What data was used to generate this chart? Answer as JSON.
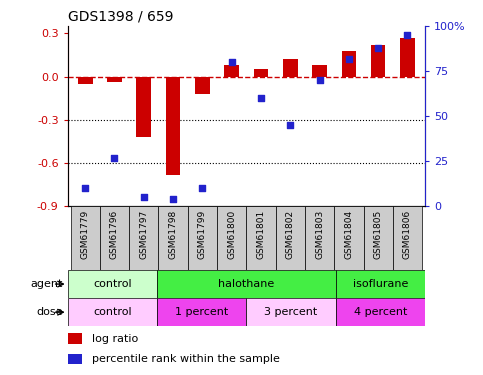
{
  "title": "GDS1398 / 659",
  "samples": [
    "GSM61779",
    "GSM61796",
    "GSM61797",
    "GSM61798",
    "GSM61799",
    "GSM61800",
    "GSM61801",
    "GSM61802",
    "GSM61803",
    "GSM61804",
    "GSM61805",
    "GSM61806"
  ],
  "log_ratio": [
    -0.05,
    -0.04,
    -0.42,
    -0.68,
    -0.12,
    0.08,
    0.05,
    0.12,
    0.08,
    0.18,
    0.22,
    0.27
  ],
  "percentile_rank": [
    10,
    27,
    5,
    4,
    10,
    80,
    60,
    45,
    70,
    82,
    88,
    95
  ],
  "bar_color": "#cc0000",
  "dot_color": "#2222cc",
  "dashed_line_color": "#cc0000",
  "ylim_left": [
    -0.9,
    0.35
  ],
  "ylim_right": [
    0,
    100
  ],
  "yticks_left": [
    0.3,
    0.0,
    -0.3,
    -0.6,
    -0.9
  ],
  "yticks_right": [
    100,
    75,
    50,
    25,
    0
  ],
  "agent_groups": [
    {
      "label": "control",
      "start": 0,
      "end": 3,
      "color": "#ccffcc"
    },
    {
      "label": "halothane",
      "start": 3,
      "end": 9,
      "color": "#44ee44"
    },
    {
      "label": "isoflurane",
      "start": 9,
      "end": 12,
      "color": "#44ee44"
    }
  ],
  "dose_groups": [
    {
      "label": "control",
      "start": 0,
      "end": 3,
      "color": "#ffccff"
    },
    {
      "label": "1 percent",
      "start": 3,
      "end": 6,
      "color": "#ee44ee"
    },
    {
      "label": "3 percent",
      "start": 6,
      "end": 9,
      "color": "#ffccff"
    },
    {
      "label": "4 percent",
      "start": 9,
      "end": 12,
      "color": "#ee44ee"
    }
  ],
  "legend_items": [
    {
      "label": "log ratio",
      "color": "#cc0000"
    },
    {
      "label": "percentile rank within the sample",
      "color": "#2222cc"
    }
  ],
  "background_color": "#ffffff",
  "tick_label_color_left": "#cc0000",
  "tick_label_color_right": "#2222cc",
  "sample_box_color": "#cccccc",
  "bar_width": 0.5,
  "dot_size": 20
}
